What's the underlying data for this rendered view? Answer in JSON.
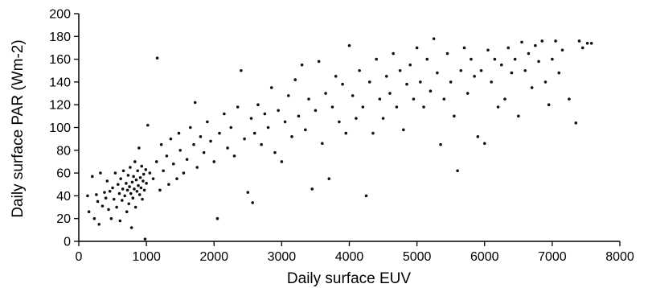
{
  "chart_data": {
    "type": "scatter",
    "title": "",
    "xlabel": "Daily surface EUV",
    "ylabel": "Daily surface PAR (Wm-2)",
    "xlim": [
      0,
      8000
    ],
    "ylim": [
      0,
      200
    ],
    "x_ticks": [
      "0",
      "1000",
      "2000",
      "3000",
      "4000",
      "5000",
      "6000",
      "7000",
      "8000"
    ],
    "y_ticks": [
      "0",
      "20",
      "40",
      "60",
      "80",
      "100",
      "120",
      "140",
      "160",
      "180",
      "200"
    ],
    "grid": false,
    "legend": "none",
    "marker_color": "#111111",
    "series": [
      {
        "values": [
          [
            130,
            40
          ],
          [
            150,
            26
          ],
          [
            200,
            57
          ],
          [
            230,
            20
          ],
          [
            260,
            41
          ],
          [
            280,
            35
          ],
          [
            300,
            15
          ],
          [
            320,
            60
          ],
          [
            350,
            31
          ],
          [
            380,
            43
          ],
          [
            400,
            38
          ],
          [
            420,
            53
          ],
          [
            440,
            28
          ],
          [
            460,
            44
          ],
          [
            480,
            20
          ],
          [
            500,
            47
          ],
          [
            520,
            37
          ],
          [
            540,
            60
          ],
          [
            560,
            30
          ],
          [
            580,
            50
          ],
          [
            600,
            42
          ],
          [
            610,
            18
          ],
          [
            620,
            55
          ],
          [
            640,
            36
          ],
          [
            650,
            46
          ],
          [
            660,
            62
          ],
          [
            680,
            40
          ],
          [
            700,
            51
          ],
          [
            710,
            26
          ],
          [
            720,
            45
          ],
          [
            730,
            58
          ],
          [
            740,
            33
          ],
          [
            750,
            48
          ],
          [
            760,
            65
          ],
          [
            770,
            42
          ],
          [
            780,
            12
          ],
          [
            790,
            52
          ],
          [
            800,
            38
          ],
          [
            810,
            57
          ],
          [
            820,
            46
          ],
          [
            830,
            70
          ],
          [
            840,
            30
          ],
          [
            850,
            54
          ],
          [
            860,
            44
          ],
          [
            870,
            62
          ],
          [
            880,
            49
          ],
          [
            890,
            82
          ],
          [
            900,
            41
          ],
          [
            910,
            56
          ],
          [
            920,
            47
          ],
          [
            930,
            66
          ],
          [
            940,
            37
          ],
          [
            950,
            53
          ],
          [
            960,
            59
          ],
          [
            970,
            45
          ],
          [
            980,
            2
          ],
          [
            990,
            63
          ],
          [
            1000,
            51
          ],
          [
            1020,
            102
          ],
          [
            1050,
            60
          ],
          [
            1100,
            55
          ],
          [
            1150,
            70
          ],
          [
            1160,
            161
          ],
          [
            1200,
            45
          ],
          [
            1220,
            85
          ],
          [
            1250,
            62
          ],
          [
            1300,
            75
          ],
          [
            1330,
            50
          ],
          [
            1360,
            90
          ],
          [
            1400,
            68
          ],
          [
            1450,
            55
          ],
          [
            1480,
            95
          ],
          [
            1500,
            80
          ],
          [
            1550,
            60
          ],
          [
            1600,
            72
          ],
          [
            1650,
            100
          ],
          [
            1700,
            85
          ],
          [
            1720,
            122
          ],
          [
            1750,
            65
          ],
          [
            1800,
            92
          ],
          [
            1850,
            78
          ],
          [
            1900,
            105
          ],
          [
            1950,
            88
          ],
          [
            2000,
            70
          ],
          [
            2050,
            20
          ],
          [
            2080,
            95
          ],
          [
            2150,
            112
          ],
          [
            2200,
            82
          ],
          [
            2250,
            100
          ],
          [
            2300,
            75
          ],
          [
            2350,
            118
          ],
          [
            2400,
            150
          ],
          [
            2450,
            90
          ],
          [
            2500,
            43
          ],
          [
            2550,
            108
          ],
          [
            2570,
            34
          ],
          [
            2600,
            95
          ],
          [
            2650,
            120
          ],
          [
            2700,
            85
          ],
          [
            2750,
            112
          ],
          [
            2800,
            100
          ],
          [
            2850,
            135
          ],
          [
            2900,
            78
          ],
          [
            2950,
            115
          ],
          [
            3000,
            70
          ],
          [
            3050,
            105
          ],
          [
            3100,
            128
          ],
          [
            3150,
            92
          ],
          [
            3200,
            142
          ],
          [
            3250,
            110
          ],
          [
            3300,
            155
          ],
          [
            3350,
            98
          ],
          [
            3400,
            125
          ],
          [
            3450,
            46
          ],
          [
            3500,
            115
          ],
          [
            3550,
            158
          ],
          [
            3600,
            86
          ],
          [
            3650,
            130
          ],
          [
            3700,
            55
          ],
          [
            3750,
            118
          ],
          [
            3800,
            145
          ],
          [
            3850,
            105
          ],
          [
            3900,
            138
          ],
          [
            3950,
            95
          ],
          [
            4000,
            172
          ],
          [
            4050,
            128
          ],
          [
            4100,
            108
          ],
          [
            4150,
            150
          ],
          [
            4200,
            118
          ],
          [
            4250,
            40
          ],
          [
            4300,
            140
          ],
          [
            4350,
            95
          ],
          [
            4400,
            160
          ],
          [
            4450,
            125
          ],
          [
            4500,
            108
          ],
          [
            4550,
            145
          ],
          [
            4600,
            130
          ],
          [
            4650,
            165
          ],
          [
            4700,
            118
          ],
          [
            4750,
            150
          ],
          [
            4800,
            98
          ],
          [
            4850,
            138
          ],
          [
            4900,
            155
          ],
          [
            4950,
            125
          ],
          [
            5000,
            170
          ],
          [
            5050,
            140
          ],
          [
            5100,
            118
          ],
          [
            5150,
            160
          ],
          [
            5200,
            132
          ],
          [
            5250,
            178
          ],
          [
            5300,
            148
          ],
          [
            5350,
            85
          ],
          [
            5400,
            125
          ],
          [
            5450,
            165
          ],
          [
            5500,
            140
          ],
          [
            5550,
            110
          ],
          [
            5600,
            62
          ],
          [
            5650,
            150
          ],
          [
            5700,
            170
          ],
          [
            5750,
            130
          ],
          [
            5800,
            160
          ],
          [
            5850,
            145
          ],
          [
            5900,
            92
          ],
          [
            5950,
            150
          ],
          [
            6000,
            86
          ],
          [
            6050,
            168
          ],
          [
            6100,
            140
          ],
          [
            6150,
            160
          ],
          [
            6200,
            118
          ],
          [
            6250,
            155
          ],
          [
            6300,
            125
          ],
          [
            6350,
            170
          ],
          [
            6400,
            148
          ],
          [
            6450,
            160
          ],
          [
            6500,
            110
          ],
          [
            6550,
            175
          ],
          [
            6600,
            150
          ],
          [
            6650,
            165
          ],
          [
            6700,
            135
          ],
          [
            6750,
            172
          ],
          [
            6800,
            158
          ],
          [
            6850,
            176
          ],
          [
            6900,
            140
          ],
          [
            6950,
            120
          ],
          [
            7000,
            160
          ],
          [
            7050,
            176
          ],
          [
            7100,
            148
          ],
          [
            7150,
            168
          ],
          [
            7250,
            125
          ],
          [
            7350,
            104
          ],
          [
            7400,
            176
          ],
          [
            7450,
            170
          ],
          [
            7520,
            174
          ],
          [
            7580,
            174
          ]
        ]
      }
    ]
  }
}
